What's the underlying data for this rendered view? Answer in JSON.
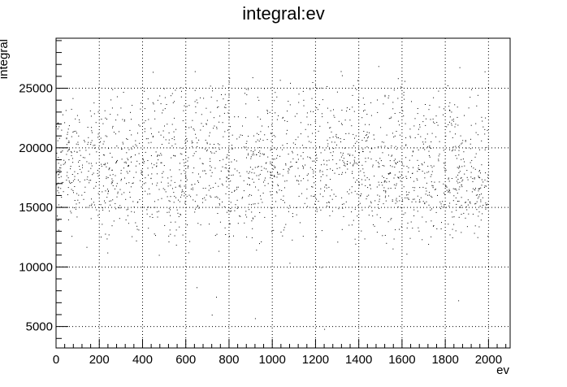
{
  "chart_data": {
    "type": "scatter",
    "title": "integral:ev",
    "xlabel": "ev",
    "ylabel": "integral",
    "xlim": [
      0,
      2100
    ],
    "ylim": [
      3200,
      29200
    ],
    "x_ticks": [
      0,
      200,
      400,
      600,
      800,
      1000,
      1200,
      1400,
      1600,
      1800,
      2000
    ],
    "y_ticks": [
      5000,
      10000,
      15000,
      20000,
      25000
    ],
    "grid": true,
    "marker_color": "#000000",
    "n_points": 2000,
    "trend": {
      "band_center": [
        [
          0,
          18000
        ],
        [
          500,
          17200
        ],
        [
          1000,
          17600
        ],
        [
          1500,
          17400
        ],
        [
          2000,
          16800
        ]
      ],
      "band_spread": 3800,
      "upper_cloud": [
        [
          200,
          22000
        ],
        [
          500,
          22800
        ],
        [
          1000,
          22600
        ],
        [
          1500,
          22500
        ],
        [
          1750,
          22300
        ]
      ],
      "sparse_low_points": [
        [
          720,
          6000
        ],
        [
          740,
          7500
        ],
        [
          920,
          5700
        ],
        [
          1240,
          4800
        ],
        [
          1860,
          7200
        ],
        [
          650,
          8300
        ]
      ]
    }
  }
}
